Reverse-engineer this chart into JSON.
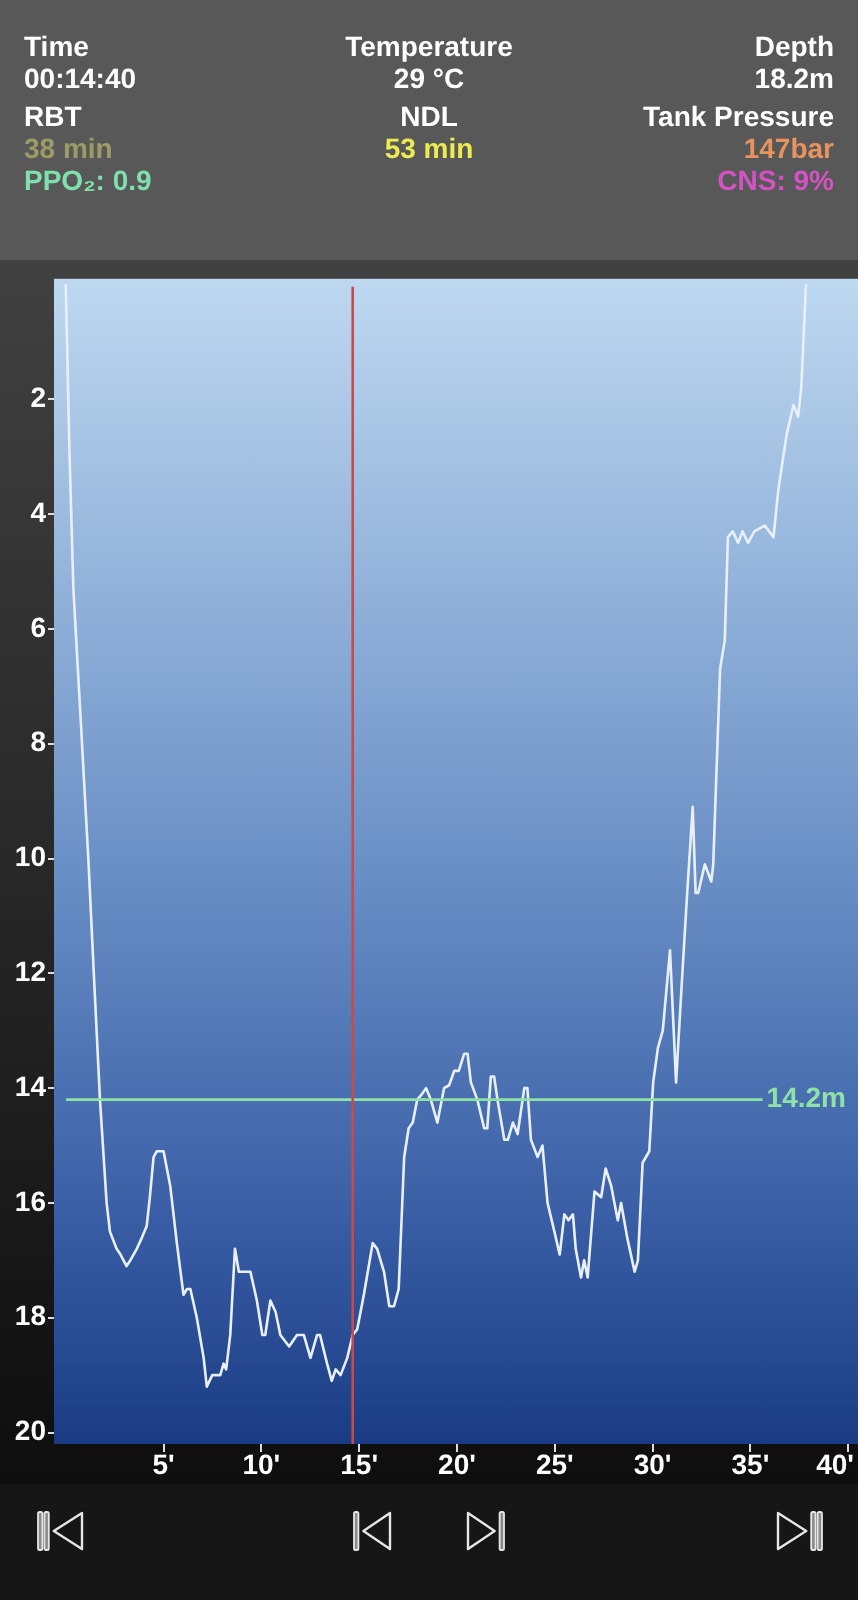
{
  "chart_data": {
    "type": "line",
    "annotations": [
      "Time",
      "00:14:40",
      "RBT",
      "38 min",
      "PPO₂: 0.9",
      "Temperature",
      "29 °C",
      "NDL",
      "53 min",
      "Depth",
      "18.2m",
      "Tank Pressure",
      "147bar",
      "CNS: 9%"
    ],
    "x": [
      0,
      0.19,
      0.39,
      0.8,
      1.17,
      1.42,
      1.75,
      2.09,
      2.26,
      2.6,
      2.8,
      3.11,
      3.3,
      3.63,
      3.9,
      4.14,
      4.3,
      4.49,
      4.65,
      5,
      5.34,
      5.68,
      6.02,
      6.2,
      6.37,
      6.7,
      7.05,
      7.21,
      7.49,
      7.9,
      8.07,
      8.2,
      8.41,
      8.65,
      8.85,
      9.1,
      9.44,
      9.77,
      10.05,
      10.2,
      10.46,
      10.73,
      10.97,
      11.42,
      11.82,
      12.17,
      12.51,
      12.85,
      13,
      13.36,
      13.6,
      13.8,
      14.05,
      14.39,
      14.67,
      14.9,
      15.24,
      15.69,
      15.92,
      16.27,
      16.54,
      16.78,
      17.02,
      17.3,
      17.53,
      17.74,
      17.97,
      18.22,
      18.42,
      18.66,
      19,
      19.34,
      19.6,
      19.86,
      20.09,
      20.37,
      20.54,
      20.71,
      21.04,
      21.39,
      21.55,
      21.73,
      21.9,
      22.07,
      22.42,
      22.6,
      22.86,
      23.1,
      23.44,
      23.6,
      23.78,
      24.12,
      24.37,
      24.63,
      24.98,
      25.25,
      25.49,
      25.7,
      25.93,
      26.07,
      26.34,
      26.5,
      26.68,
      27.03,
      27.37,
      27.6,
      27.88,
      28.22,
      28.39,
      28.7,
      29.08,
      29.25,
      29.49,
      29.83,
      30.03,
      30.27,
      30.52,
      30.89,
      31.2,
      31.47,
      31.75,
      32.05,
      32.2,
      32.33,
      32.67,
      33,
      33.1,
      33.45,
      33.69,
      33.85,
      34.1,
      34.37,
      34.6,
      34.88,
      35.2,
      35.74,
      36.18,
      36.42,
      36.59,
      36.86,
      37.2,
      37.44,
      37.6,
      37.84
    ],
    "values": [
      0,
      2.9,
      5.3,
      7.8,
      10.1,
      11.9,
      14.2,
      16,
      16.5,
      16.8,
      16.9,
      17.1,
      17,
      16.8,
      16.6,
      16.4,
      15.9,
      15.2,
      15.1,
      15.1,
      15.7,
      16.7,
      17.6,
      17.5,
      17.5,
      18,
      18.7,
      19.2,
      19,
      19,
      18.8,
      18.9,
      18.3,
      16.8,
      17.2,
      17.2,
      17.2,
      17.7,
      18.3,
      18.3,
      17.7,
      17.9,
      18.3,
      18.5,
      18.3,
      18.3,
      18.7,
      18.3,
      18.3,
      18.8,
      19.1,
      18.9,
      19,
      18.7,
      18.3,
      18.2,
      17.6,
      16.7,
      16.8,
      17.2,
      17.8,
      17.8,
      17.5,
      15.2,
      14.7,
      14.6,
      14.2,
      14.1,
      14,
      14.2,
      14.6,
      14,
      13.95,
      13.7,
      13.7,
      13.4,
      13.4,
      13.9,
      14.2,
      14.7,
      14.7,
      13.8,
      13.8,
      14.2,
      14.9,
      14.9,
      14.6,
      14.8,
      14,
      14,
      14.9,
      15.2,
      15,
      16,
      16.5,
      16.9,
      16.2,
      16.3,
      16.2,
      16.8,
      17.3,
      17,
      17.3,
      15.8,
      15.9,
      15.4,
      15.7,
      16.3,
      16,
      16.6,
      17.2,
      17,
      15.3,
      15.1,
      13.9,
      13.3,
      13,
      11.6,
      13.9,
      12.3,
      10.7,
      9.1,
      10.6,
      10.6,
      10.1,
      10.4,
      10.1,
      6.7,
      6.2,
      4.4,
      4.3,
      4.5,
      4.3,
      4.5,
      4.3,
      4.2,
      4.4,
      3.6,
      3.2,
      2.6,
      2.1,
      2.3,
      1.8,
      0
    ],
    "color": "#e8f0fc",
    "xlim": [
      -0.6,
      40.5
    ],
    "xticks": [
      {
        "value": 5,
        "label": "5'"
      },
      {
        "value": 10,
        "label": "10'"
      },
      {
        "value": 15,
        "label": "15'"
      },
      {
        "value": 20,
        "label": "20'"
      },
      {
        "value": 25,
        "label": "25'"
      },
      {
        "value": 30,
        "label": "30'"
      },
      {
        "value": 35,
        "label": "35'"
      },
      {
        "value": 40,
        "label": "40'"
      }
    ],
    "ylim": [
      20.2,
      -0.1
    ],
    "yticks": [
      2,
      4,
      6,
      8,
      10,
      12,
      14,
      16,
      18,
      20
    ],
    "ref_lines": [
      {
        "axis": "y",
        "value": 14.2,
        "label": "14.2m",
        "color": "#8ee2a6"
      },
      {
        "axis": "x",
        "value": 14.67,
        "color": "#c94a4c"
      }
    ]
  }
}
